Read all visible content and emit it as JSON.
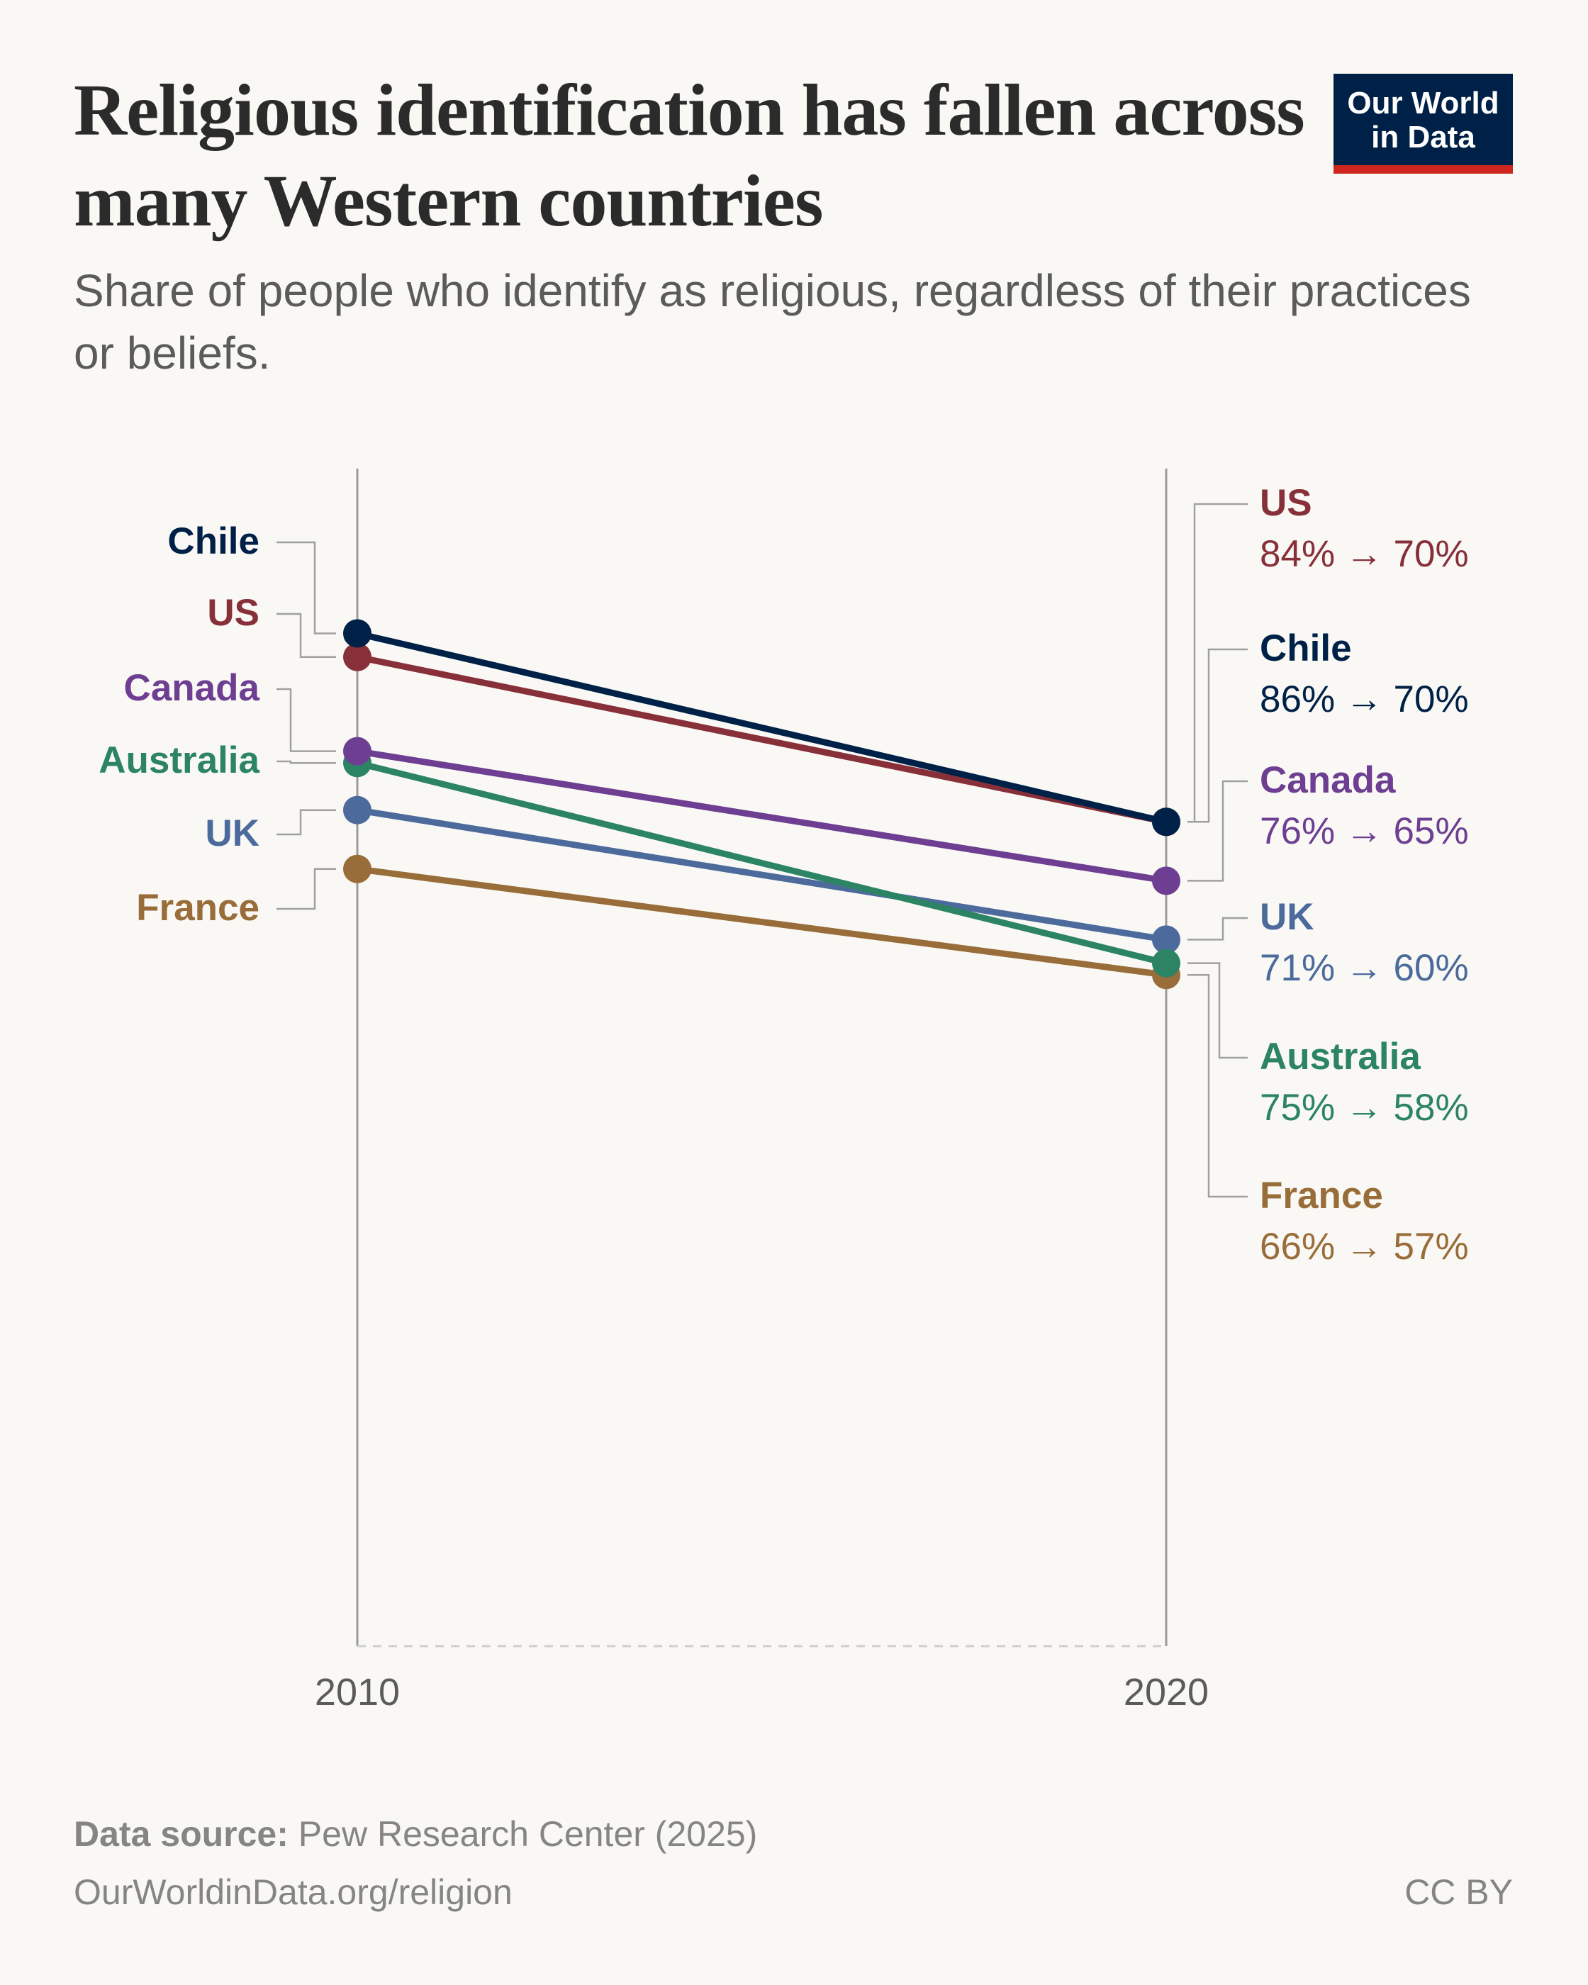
{
  "header": {
    "title": "Religious identification has fallen across many Western countries",
    "subtitle": "Share of people who identify as religious, regardless of their practices or beliefs.",
    "logo_line1": "Our World",
    "logo_line2": "in Data"
  },
  "chart_data": {
    "type": "line",
    "subtype": "slope",
    "x": [
      2010,
      2020
    ],
    "x_tick_labels": [
      "2010",
      "2020"
    ],
    "ylim": [
      0,
      100
    ],
    "series": [
      {
        "name": "Chile",
        "values": [
          86,
          70
        ],
        "color": "#002147",
        "change_label": "86% → 70%"
      },
      {
        "name": "US",
        "values": [
          84,
          70
        ],
        "color": "#883039",
        "change_label": "84% → 70%"
      },
      {
        "name": "Canada",
        "values": [
          76,
          65
        ],
        "color": "#6d3e91",
        "change_label": "76% → 65%"
      },
      {
        "name": "Australia",
        "values": [
          75,
          58
        ],
        "color": "#2c8465",
        "change_label": "75% → 58%"
      },
      {
        "name": "UK",
        "values": [
          71,
          60
        ],
        "color": "#4c6a9c",
        "change_label": "71% → 60%"
      },
      {
        "name": "France",
        "values": [
          66,
          57
        ],
        "color": "#996d39",
        "change_label": "66% → 57%"
      }
    ]
  },
  "footer": {
    "source_label": "Data source:",
    "source": "Pew Research Center (2025)",
    "url": "OurWorldinData.org/religion",
    "license": "CC BY"
  }
}
